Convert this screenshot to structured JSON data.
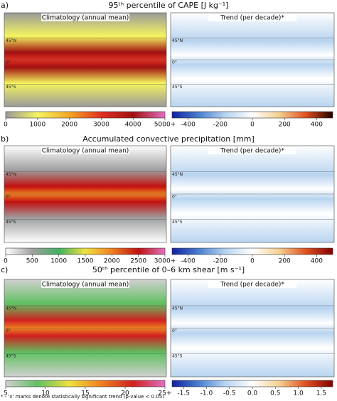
{
  "lat_labels": [
    "45°N",
    "0°",
    "45°S"
  ],
  "panels": [
    {
      "label": "a)",
      "title": "95ᵗʰ percentile of CAPE [J kg⁻¹]",
      "maps": [
        {
          "subtitle": "Climatology (annual mean)",
          "colorbar": {
            "lim": [
              0,
              5000
            ],
            "ticks": [
              0,
              1000,
              2000,
              3000,
              4000,
              {
                "value": 5000,
                "label": "5000+"
              }
            ],
            "colors": [
              "#9a9a9a",
              "#f5f560",
              "#f5a623",
              "#e03020",
              "#a01010",
              "#e070c0"
            ]
          }
        },
        {
          "subtitle": "Trend (per decade)*",
          "colorbar": {
            "lim": [
              -500,
              500
            ],
            "ticks": [
              -400,
              -200,
              0,
              200,
              400
            ],
            "colors": [
              "#1020a0",
              "#4a7fd0",
              "#b8d4f0",
              "#ffffff",
              "#f5d090",
              "#e05020",
              "#200000"
            ]
          }
        }
      ]
    },
    {
      "label": "b)",
      "title": "Accumulated convective precipitation [mm]",
      "maps": [
        {
          "subtitle": "Climatology (annual mean)",
          "colorbar": {
            "lim": [
              0,
              3000
            ],
            "ticks": [
              0,
              500,
              1000,
              1500,
              2000,
              2500,
              {
                "value": 3000,
                "label": "3000+"
              }
            ],
            "colors": [
              "#ffffff",
              "#a0a0a0",
              "#40b060",
              "#f0e040",
              "#f08020",
              "#c01010",
              "#e070c0"
            ]
          }
        },
        {
          "subtitle": "Trend (per decade)*",
          "colorbar": {
            "lim": [
              -500,
              500
            ],
            "ticks": [
              -400,
              -200,
              0,
              200,
              400
            ],
            "colors": [
              "#1020a0",
              "#4a7fd0",
              "#b8d4f0",
              "#ffffff",
              "#f5d090",
              "#e05020",
              "#800000"
            ]
          }
        }
      ]
    },
    {
      "label": "c)",
      "title": "50ᵗʰ percentile of 0–6 km shear [m s⁻¹]",
      "maps": [
        {
          "subtitle": "Climatology (annual mean)",
          "colorbar": {
            "lim": [
              5,
              25
            ],
            "ticks": [
              5,
              10,
              15,
              20,
              {
                "value": 25,
                "label": "25+"
              }
            ],
            "colors": [
              "#d0d0d0",
              "#60c060",
              "#f0e040",
              "#f08020",
              "#d02020",
              "#e070c0"
            ]
          }
        },
        {
          "subtitle": "Trend (per decade)*",
          "colorbar": {
            "lim": [
              -1.75,
              1.75
            ],
            "ticks": [
              -1.5,
              {
                "value": -1,
                "label": "-1.0"
              },
              -0.5,
              {
                "value": 0,
                "label": "0.0"
              },
              0.5,
              {
                "value": 1,
                "label": "1.0"
              },
              1.5
            ],
            "colors": [
              "#1020a0",
              "#4a7fd0",
              "#b8d4f0",
              "#ffffff",
              "#f5d090",
              "#e05020",
              "#800000"
            ]
          }
        }
      ]
    }
  ],
  "footnote": "* - 'x' marks denote statistically significant trend (p-value < 0.05)"
}
